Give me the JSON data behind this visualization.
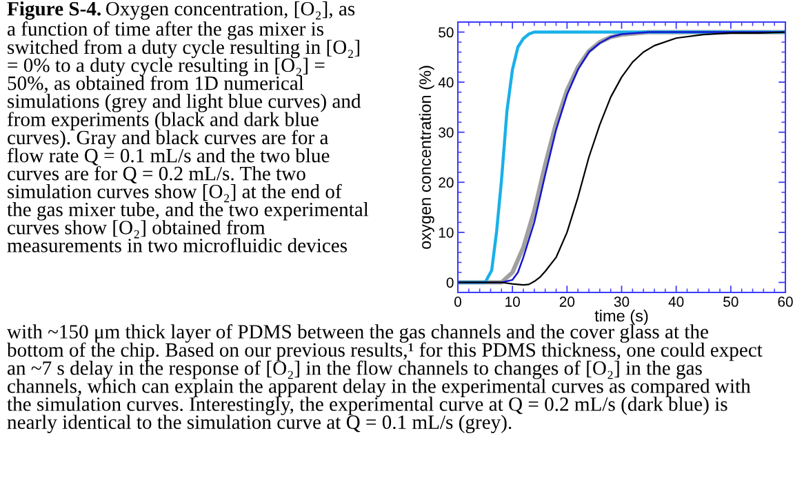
{
  "chart_data": {
    "type": "line",
    "title": "Figure S-4.",
    "xlabel": "time (s)",
    "ylabel": "oxygen concentration (%)",
    "annotations": [
      "Oxygen concentration, [O₂], as\na function of time after the gas mixer is\nswitched from a duty cycle resulting in [O₂]\n= 0% to a duty cycle resulting in [O₂] =\n50%, as obtained from 1D numerical\nsimulations (grey and light blue curves) and\nfrom experiments (black and dark blue\ncurves). Gray and black curves are for a\nflow rate Q = 0.1 mL/s and the two blue\ncurves are for Q = 0.2 mL/s. The two\nsimulation curves show [O₂] at the end of\nthe gas mixer tube, and the two experimental\ncurves show [O₂] obtained from\nmeasurements in two microfluidic devices",
      "with ~150 μm thick layer of PDMS between the gas channels and the cover glass at the\nbottom of the chip. Based on our previous results,¹ for this PDMS thickness, one could expect\nan ~7 s delay in the response of [O₂] in the flow channels to changes of [O₂] in the gas\nchannels, which can explain the apparent delay in the experimental curves as compared with\nthe simulation curves. Interestingly, the experimental curve at Q = 0.2 mL/s (dark blue) is\nnearly identical to the simulation curve at Q = 0.1 mL/s (grey)."
    ],
    "series": [
      {
        "color": "#a0a0a0",
        "x": [
          0,
          8,
          10,
          12,
          14,
          16,
          18,
          20,
          22,
          24,
          26,
          28,
          30,
          35,
          60
        ],
        "values": [
          0,
          0,
          2,
          7,
          14.3,
          23.5,
          31.8,
          38.4,
          43,
          46.2,
          48,
          49,
          49.5,
          50,
          50
        ]
      },
      {
        "color": "#1ab0e8",
        "x": [
          0,
          5,
          6.2,
          7.1,
          8,
          9,
          10,
          11,
          12,
          13,
          14,
          60
        ],
        "values": [
          0,
          0,
          2.4,
          10.2,
          20.5,
          34.3,
          42.5,
          47,
          48.7,
          49.6,
          50,
          50
        ]
      },
      {
        "color": "#1515d0",
        "x": [
          0,
          8,
          10,
          11,
          12,
          14,
          16,
          18,
          20,
          22,
          24,
          26,
          28,
          30,
          35,
          60
        ],
        "values": [
          0,
          0,
          0.5,
          2,
          5,
          12,
          21.5,
          30.5,
          37.5,
          42.5,
          46,
          47.8,
          49,
          49.6,
          50,
          50
        ]
      },
      {
        "color": "#000000",
        "x": [
          0,
          8,
          10,
          12,
          13,
          14,
          15,
          16,
          18,
          20,
          22,
          24,
          26,
          28,
          30,
          32,
          34,
          36,
          40,
          45,
          50,
          55,
          60
        ],
        "values": [
          0,
          0,
          -0.3,
          -0.5,
          -0.4,
          0.2,
          1,
          2.2,
          5,
          10,
          17,
          25,
          31.5,
          37,
          41,
          44,
          46,
          47.3,
          48.8,
          49.5,
          49.8,
          49.8,
          50
        ]
      }
    ],
    "xlim": [
      0,
      60
    ],
    "xticks": [
      0,
      10,
      20,
      30,
      40,
      50,
      60
    ],
    "ylim": [
      -2,
      52
    ],
    "yticks": [
      0,
      10,
      20,
      30,
      40,
      50
    ],
    "grid": false,
    "legend": false,
    "marker": "none",
    "line_style": "solid"
  }
}
